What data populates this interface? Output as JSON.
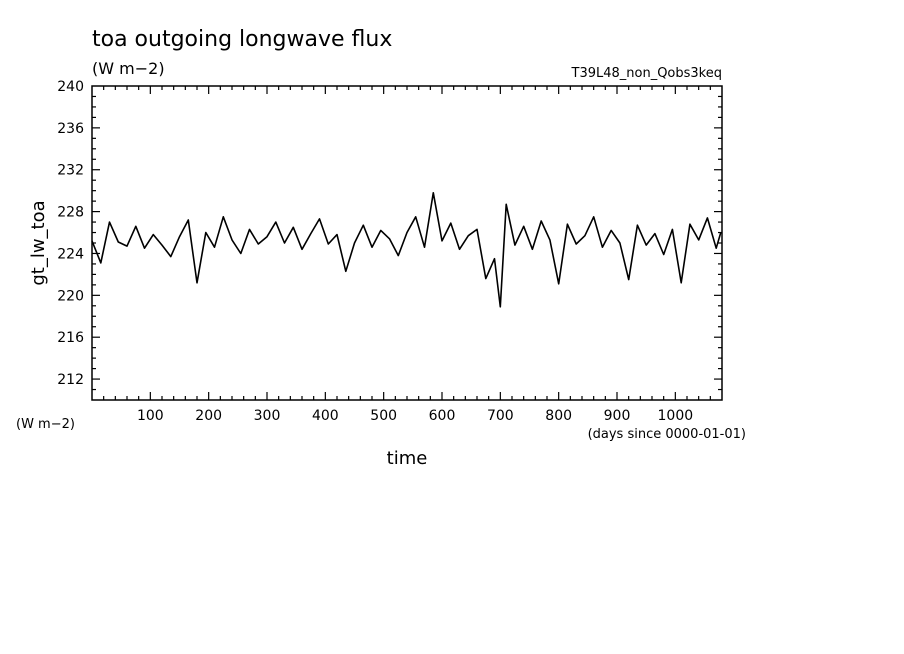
{
  "chart_data": {
    "type": "line",
    "title": "toa outgoing longwave flux",
    "units": "(W m−2)",
    "run_name": "T39L48_non_Qobs3keq",
    "ylabel": "gt_lw_toa",
    "ylabel_units": "(W m−2)",
    "xlabel": "time",
    "xunits": "(days since 0000-01-01)",
    "xlim": [
      0,
      1080
    ],
    "ylim": [
      210,
      240
    ],
    "xticks": [
      "100",
      "200",
      "300",
      "400",
      "500",
      "600",
      "700",
      "800",
      "900",
      "1000"
    ],
    "yticks": [
      "212",
      "216",
      "220",
      "224",
      "228",
      "232",
      "236",
      "240"
    ],
    "grid": false,
    "series": [
      {
        "x": [
          0,
          15,
          30,
          45,
          60,
          75,
          90,
          105,
          120,
          135,
          150,
          165,
          180,
          195,
          210,
          225,
          240,
          255,
          270,
          285,
          300,
          315,
          330,
          345,
          360,
          375,
          390,
          405,
          420,
          435,
          450,
          465,
          480,
          495,
          510,
          525,
          540,
          555,
          570,
          585,
          600,
          615,
          630,
          645,
          660,
          675,
          690,
          700,
          710,
          725,
          740,
          755,
          770,
          785,
          800,
          815,
          830,
          845,
          860,
          875,
          890,
          905,
          920,
          935,
          950,
          965,
          980,
          995,
          1010,
          1025,
          1040,
          1055,
          1070,
          1078
        ],
        "y": [
          225.2,
          223.1,
          227.0,
          225.1,
          224.7,
          226.6,
          224.5,
          225.8,
          224.8,
          223.7,
          225.6,
          227.2,
          221.2,
          226.0,
          224.6,
          227.5,
          225.3,
          224.0,
          226.3,
          224.9,
          225.6,
          227.0,
          225.0,
          226.5,
          224.4,
          225.9,
          227.3,
          224.9,
          225.8,
          222.3,
          225.0,
          226.7,
          224.6,
          226.2,
          225.4,
          223.8,
          226.0,
          227.5,
          224.6,
          229.8,
          225.2,
          226.9,
          224.4,
          225.7,
          226.3,
          221.6,
          223.5,
          218.9,
          228.7,
          224.8,
          226.6,
          224.4,
          227.1,
          225.3,
          221.1,
          226.8,
          224.9,
          225.7,
          227.5,
          224.6,
          226.2,
          225.0,
          221.5,
          226.7,
          224.8,
          225.9,
          223.9,
          226.3,
          221.2,
          226.8,
          225.3,
          227.4,
          224.5,
          226.0
        ]
      }
    ]
  }
}
